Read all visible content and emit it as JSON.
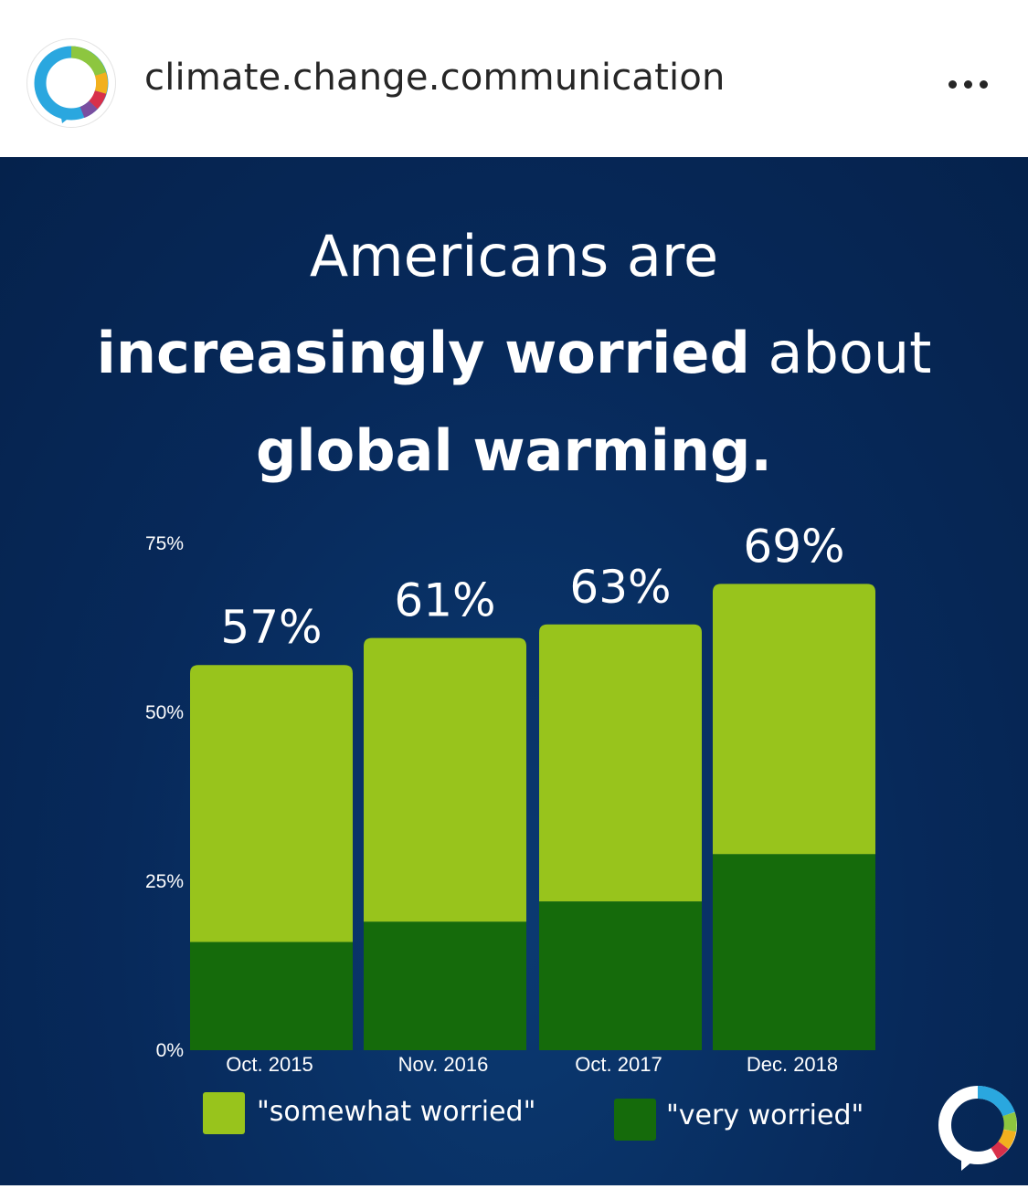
{
  "post": {
    "username": "climate.change.communication",
    "avatar_icon": "speech-bubble-logo-icon",
    "more_icon": "more-options-icon"
  },
  "headline": {
    "line1": "Americans are",
    "line2_bold": "increasingly worried",
    "line2_rest": " about",
    "line3": "global warming."
  },
  "colors": {
    "background": "#07295a",
    "somewhat_worried": "#98c41c",
    "very_worried": "#156b0b",
    "text": "#ffffff"
  },
  "chart_data": {
    "type": "bar",
    "stacked": true,
    "title": "",
    "xlabel": "",
    "ylabel": "",
    "ylim": [
      0,
      75
    ],
    "yticks": [
      0,
      25,
      50,
      75
    ],
    "ytick_labels": [
      "0%",
      "25%",
      "50%",
      "75%"
    ],
    "grid": false,
    "legend_placement": "bottom",
    "categories": [
      "Oct. 2015",
      "Nov. 2016",
      "Oct. 2017",
      "Dec. 2018"
    ],
    "series": [
      {
        "name": "\"very worried\"",
        "values": [
          16,
          19,
          22,
          29
        ],
        "color": "#156b0b"
      },
      {
        "name": "\"somewhat worried\"",
        "values": [
          41,
          42,
          41,
          40
        ],
        "color": "#98c41c"
      }
    ],
    "totals": [
      57,
      61,
      63,
      69
    ],
    "total_labels": [
      "57%",
      "61%",
      "63%",
      "69%"
    ]
  },
  "legend": {
    "somewhat": "\"somewhat worried\"",
    "very": "\"very worried\""
  }
}
